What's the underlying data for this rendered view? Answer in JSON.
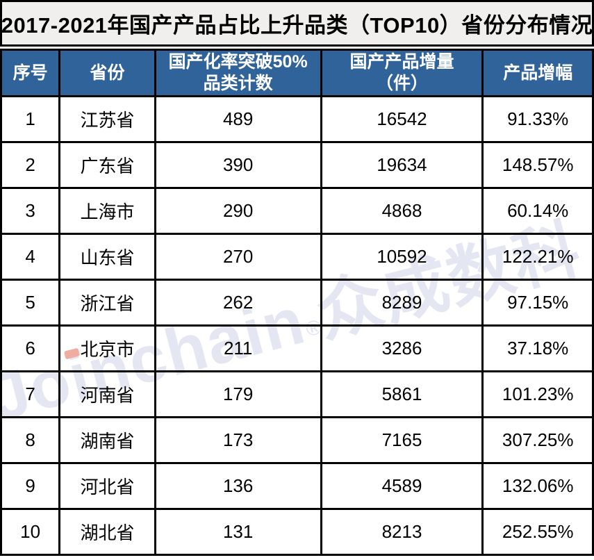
{
  "chart_data": {
    "type": "table",
    "title": "2017-2021年国产产品占比上升品类（TOP10）省份分布情况",
    "columns": [
      {
        "line1": "序号",
        "line2": ""
      },
      {
        "line1": "省份",
        "line2": ""
      },
      {
        "line1": "国产化率突破50%",
        "line2": "品类计数"
      },
      {
        "line1": "国产产品增量",
        "line2": "（件）"
      },
      {
        "line1": "产品增幅",
        "line2": ""
      }
    ],
    "rows": [
      [
        "1",
        "江苏省",
        "489",
        "16542",
        "91.33%"
      ],
      [
        "2",
        "广东省",
        "390",
        "19634",
        "148.57%"
      ],
      [
        "3",
        "上海市",
        "290",
        "4868",
        "60.14%"
      ],
      [
        "4",
        "山东省",
        "270",
        "10592",
        "122.21%"
      ],
      [
        "5",
        "浙江省",
        "262",
        "8289",
        "97.15%"
      ],
      [
        "6",
        "北京市",
        "211",
        "3286",
        "37.18%"
      ],
      [
        "7",
        "河南省",
        "179",
        "5861",
        "101.23%"
      ],
      [
        "8",
        "湖南省",
        "173",
        "7165",
        "307.25%"
      ],
      [
        "9",
        "河北省",
        "136",
        "4589",
        "132.06%"
      ],
      [
        "10",
        "湖北省",
        "131",
        "8213",
        "252.55%"
      ]
    ]
  },
  "watermark": {
    "brand": "Joinchain",
    "reg": "®",
    "suffix": "众成数科",
    "color": "#E4E7F2",
    "accent_color": "#F0ACA2"
  },
  "colors": {
    "header_bg": "#30639A",
    "header_text": "#FFFFFF",
    "title_bg": "#F0EFED",
    "border": "#000000",
    "cell_bg": "#FFFFFF",
    "text": "#000000"
  }
}
